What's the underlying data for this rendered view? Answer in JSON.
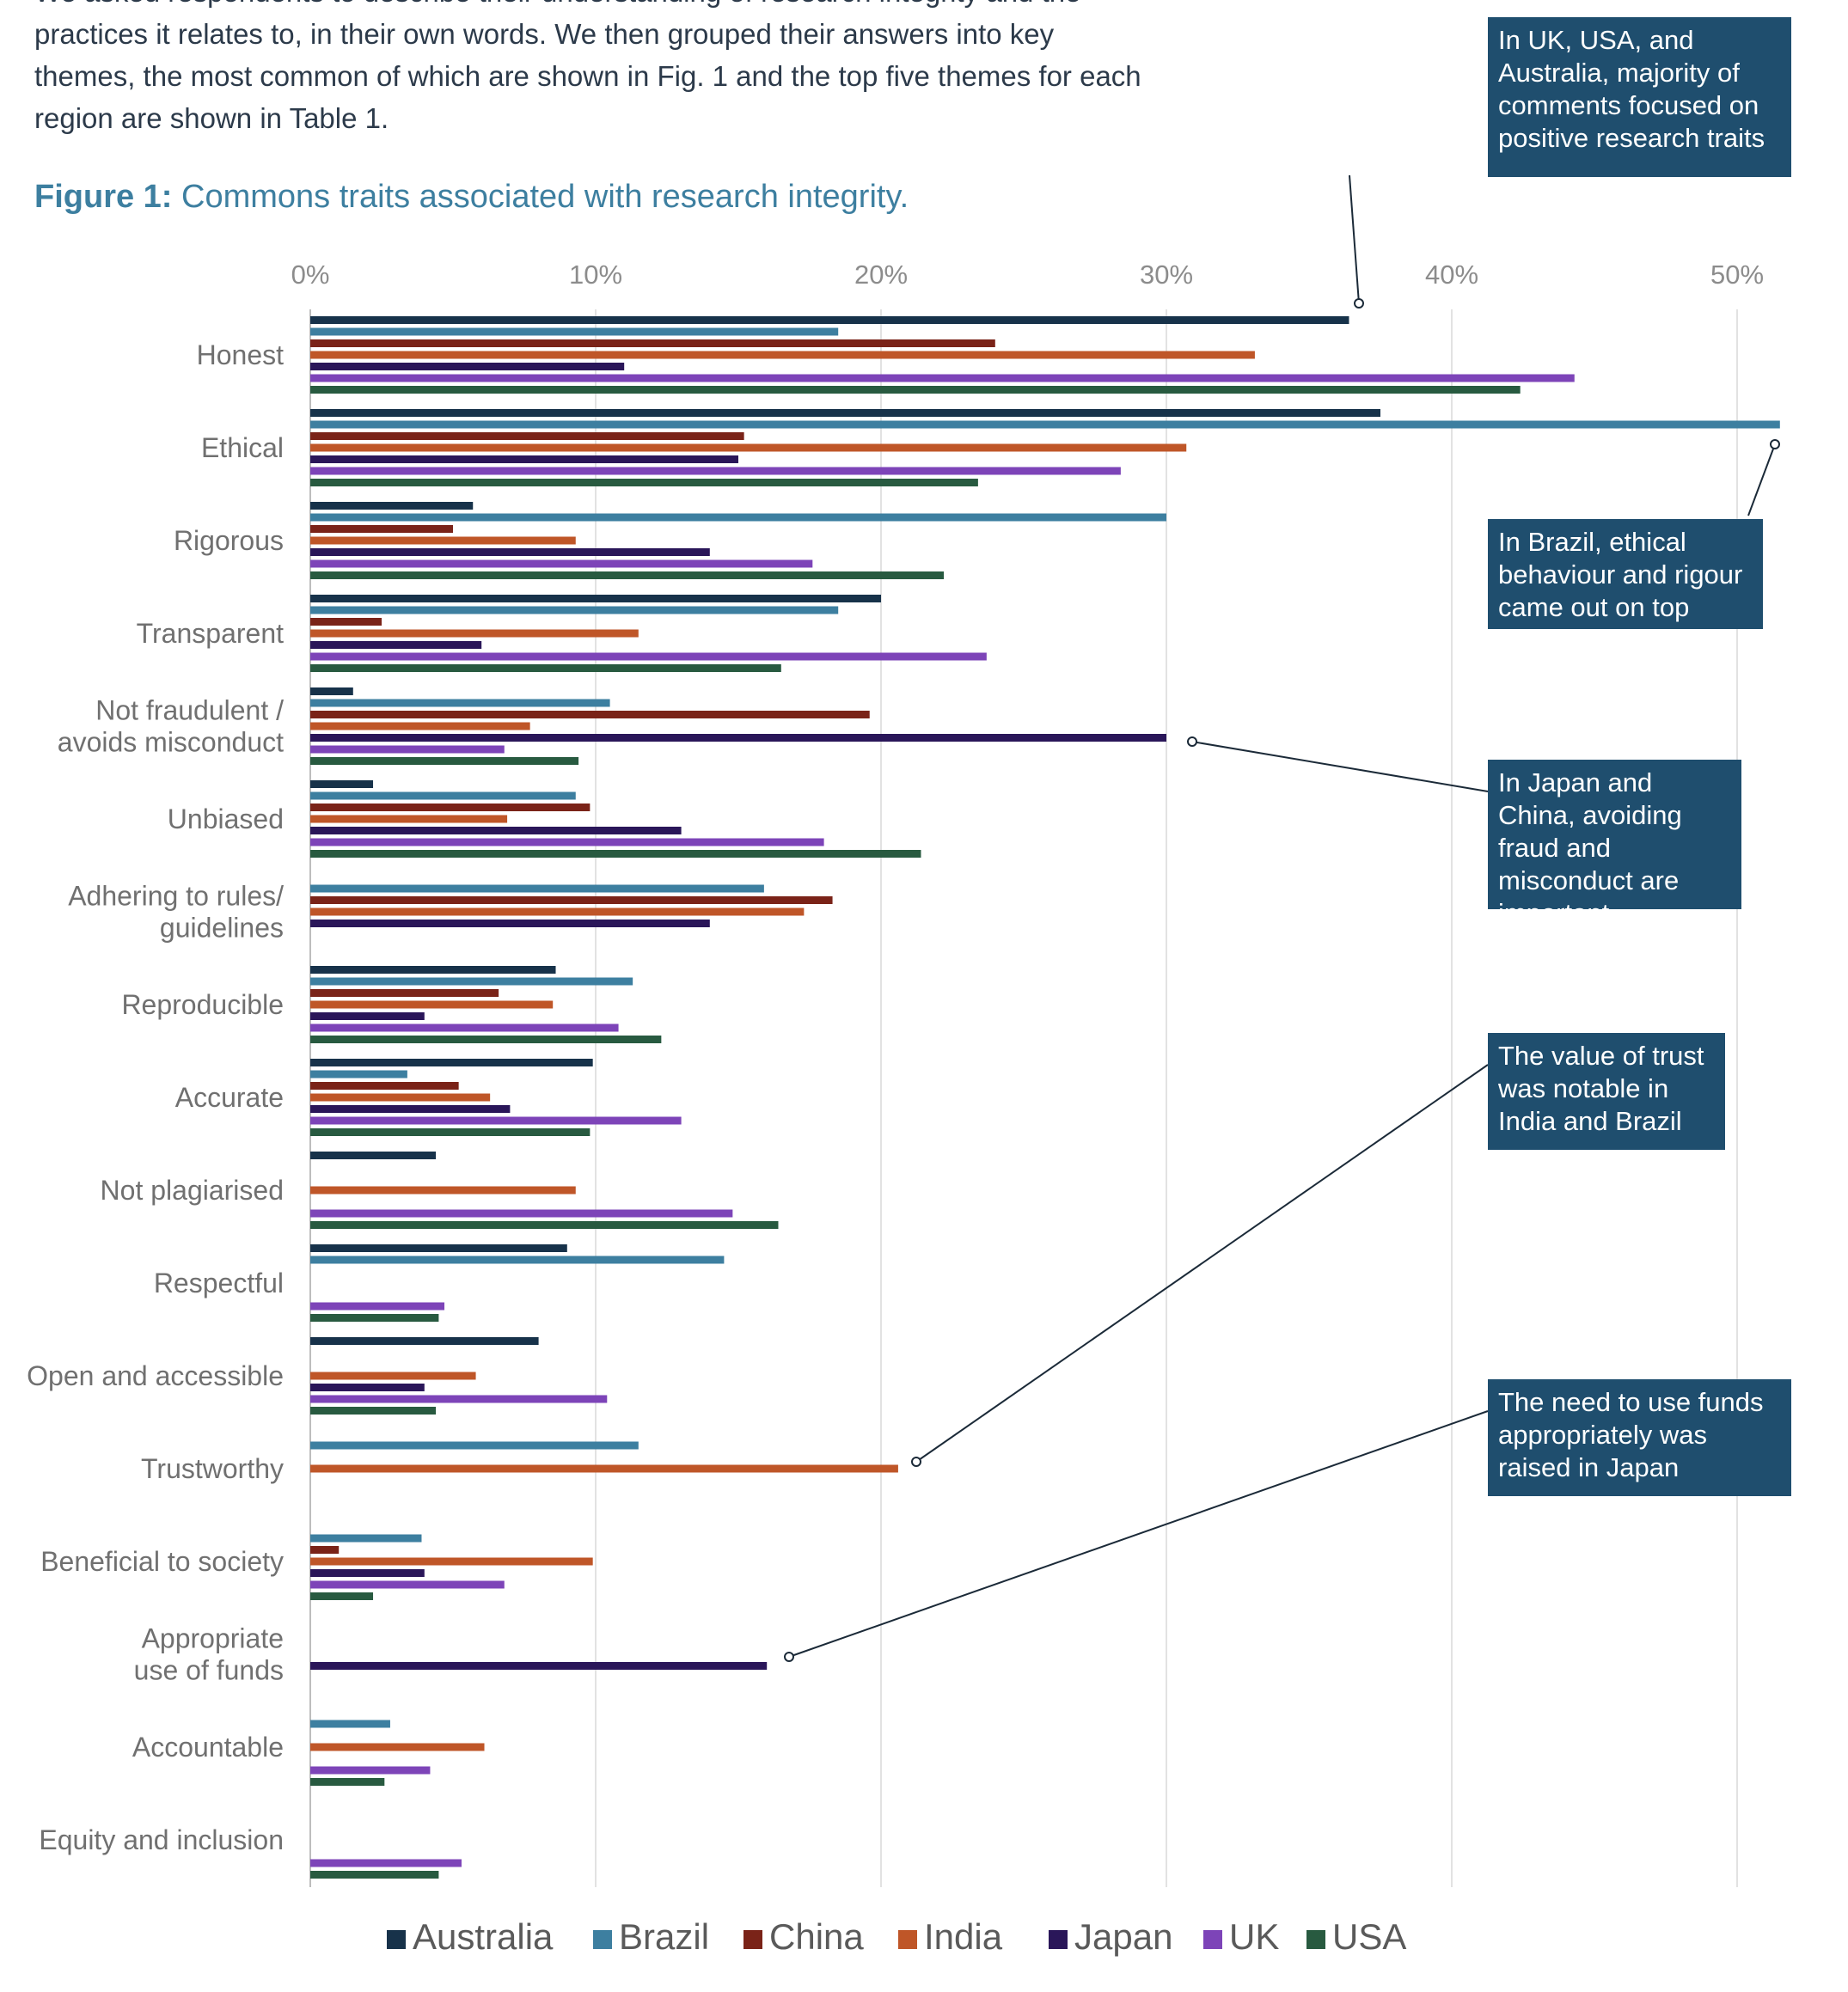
{
  "intro_lines": [
    "We asked respondents to describe their understanding of research integrity and the",
    "practices it relates to, in their own words. We then grouped their answers into key",
    "themes, the most common of which are shown in Fig. 1 and the top five themes for each",
    "region are shown in Table 1."
  ],
  "figure": {
    "label": "Figure 1:",
    "title": "Commons traits associated with research integrity."
  },
  "callouts": [
    "In UK, USA, and Australia, majority of comments focused on positive research traits",
    "In Brazil, ethical behaviour and rigour came out on top",
    "In Japan and China, avoiding fraud and misconduct are important",
    "The value of trust was notable in India and Brazil",
    "The need to use funds appropriately was raised in Japan"
  ],
  "chart_data": {
    "type": "bar",
    "orientation": "horizontal",
    "title": "Commons traits associated with research integrity.",
    "xlim": [
      0,
      51.5
    ],
    "x_ticks": [
      "0%",
      "10%",
      "20%",
      "30%",
      "40%",
      "50%"
    ],
    "x_tick_values": [
      0,
      10,
      20,
      30,
      40,
      50
    ],
    "legend_position": "bottom",
    "grid": true,
    "categories": [
      "Honest",
      "Ethical",
      "Rigorous",
      "Transparent",
      "Not fraudulent / avoids misconduct",
      "Unbiased",
      "Adhering to rules/ guidelines",
      "Reproducible",
      "Accurate",
      "Not plagiarised",
      "Respectful",
      "Open and accessible",
      "Trustworthy",
      "Beneficial to society",
      "Appropriate use of funds",
      "Accountable",
      "Equity and inclusion"
    ],
    "category_lines": [
      [
        "Honest"
      ],
      [
        "Ethical"
      ],
      [
        "Rigorous"
      ],
      [
        "Transparent"
      ],
      [
        "Not fraudulent /",
        "avoids misconduct"
      ],
      [
        "Unbiased"
      ],
      [
        "Adhering to rules/",
        "guidelines"
      ],
      [
        "Reproducible"
      ],
      [
        "Accurate"
      ],
      [
        "Not plagiarised"
      ],
      [
        "Respectful"
      ],
      [
        "Open and accessible"
      ],
      [
        "Trustworthy"
      ],
      [
        "Beneficial to society"
      ],
      [
        "Appropriate",
        "use of funds"
      ],
      [
        "Accountable"
      ],
      [
        "Equity and inclusion"
      ]
    ],
    "series": [
      {
        "name": "Australia",
        "color": "#17324a",
        "values": [
          36.4,
          37.5,
          5.7,
          20.0,
          1.5,
          2.2,
          0,
          8.6,
          9.9,
          4.4,
          9.0,
          8.0,
          0,
          0,
          0,
          0,
          0
        ]
      },
      {
        "name": "Brazil",
        "color": "#3d7fa0",
        "values": [
          18.5,
          51.5,
          30.0,
          18.5,
          10.5,
          9.3,
          15.9,
          11.3,
          3.4,
          0,
          14.5,
          0,
          11.5,
          3.9,
          0,
          2.8,
          0
        ]
      },
      {
        "name": "China",
        "color": "#7a2318",
        "values": [
          24.0,
          15.2,
          5.0,
          2.5,
          19.6,
          9.8,
          18.3,
          6.6,
          5.2,
          0,
          0,
          0,
          0,
          1.0,
          0,
          0,
          0
        ]
      },
      {
        "name": "India",
        "color": "#bf5628",
        "values": [
          33.1,
          30.7,
          9.3,
          11.5,
          7.7,
          6.9,
          17.3,
          8.5,
          6.3,
          9.3,
          0,
          5.8,
          20.6,
          9.9,
          0,
          6.1,
          0
        ]
      },
      {
        "name": "Japan",
        "color": "#2a1659",
        "values": [
          11.0,
          15.0,
          14.0,
          6.0,
          30.0,
          13.0,
          14.0,
          4.0,
          7.0,
          0,
          0,
          4.0,
          0,
          4.0,
          16.0,
          0,
          0
        ]
      },
      {
        "name": "UK",
        "color": "#7d44b8",
        "values": [
          44.3,
          28.4,
          17.6,
          23.7,
          6.8,
          18.0,
          0,
          10.8,
          13.0,
          14.8,
          4.7,
          10.4,
          0,
          6.8,
          0,
          4.2,
          5.3
        ]
      },
      {
        "name": "USA",
        "color": "#285a40",
        "values": [
          42.4,
          23.4,
          22.2,
          16.5,
          9.4,
          21.4,
          0,
          12.3,
          9.8,
          16.4,
          4.5,
          4.4,
          0,
          2.2,
          0,
          2.6,
          4.5
        ]
      }
    ]
  }
}
